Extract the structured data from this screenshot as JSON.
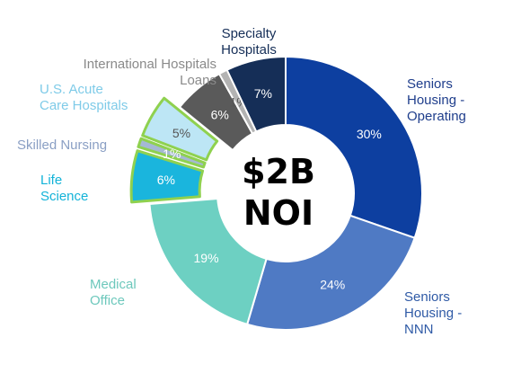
{
  "center": {
    "line1": "$2B",
    "line2": "NOI"
  },
  "chart_data": {
    "type": "pie",
    "donut": true,
    "slices": [
      {
        "name": "Seniors Housing - Operating",
        "label": "Seniors\nHousing -\nOperating",
        "value": 30,
        "value_label": "30%",
        "color": "#0d3fa0",
        "label_color": "#1f3e8c",
        "value_color": "#ffffff",
        "highlight": false
      },
      {
        "name": "Seniors Housing - NNN",
        "label": "Seniors\nHousing -\nNNN",
        "value": 24,
        "value_label": "24%",
        "color": "#4f7ac4",
        "label_color": "#2f5aa6",
        "value_color": "#ffffff",
        "highlight": false
      },
      {
        "name": "Medical Office",
        "label": "Medical\nOffice",
        "value": 19,
        "value_label": "19%",
        "color": "#6dd0c2",
        "label_color": "#6dc8bc",
        "value_color": "#ffffff",
        "highlight": false
      },
      {
        "name": "Life Science",
        "label": "Life\nScience",
        "value": 6,
        "value_label": "6%",
        "color": "#1ab5dd",
        "label_color": "#13b3d8",
        "value_color": "#ffffff",
        "highlight": true
      },
      {
        "name": "Skilled Nursing",
        "label": "Skilled Nursing",
        "value": 1,
        "value_label": "1%",
        "color": "#a5b8d4",
        "label_color": "#8a9fc4",
        "value_color": "#ffffff",
        "highlight": true
      },
      {
        "name": "U.S. Acute Care Hospitals",
        "label": "U.S. Acute\nCare Hospitals",
        "value": 5,
        "value_label": "5%",
        "color": "#bde6f5",
        "label_color": "#7fcbe8",
        "value_color": "#555555",
        "highlight": true
      },
      {
        "name": "International Hospitals Loans",
        "label": "International Hospitals\nLoans",
        "value": 6,
        "value_label": "6%",
        "color": "#5a5a5a",
        "label_color": "#8a8a8a",
        "value_color": "#ffffff",
        "highlight": false
      },
      {
        "name": "International Hospitals Loans (2)",
        "label": "",
        "value": 1,
        "value_label": "1%",
        "color": "#b3b3b3",
        "label_color": "#8a8a8a",
        "value_color": "#555555",
        "highlight": false
      },
      {
        "name": "Specialty Hospitals",
        "label": "Specialty\nHospitals",
        "value": 7,
        "value_label": "7%",
        "color": "#152e57",
        "label_color": "#152e57",
        "value_color": "#ffffff",
        "highlight": false
      }
    ],
    "highlight_color": "#8fd14f"
  }
}
